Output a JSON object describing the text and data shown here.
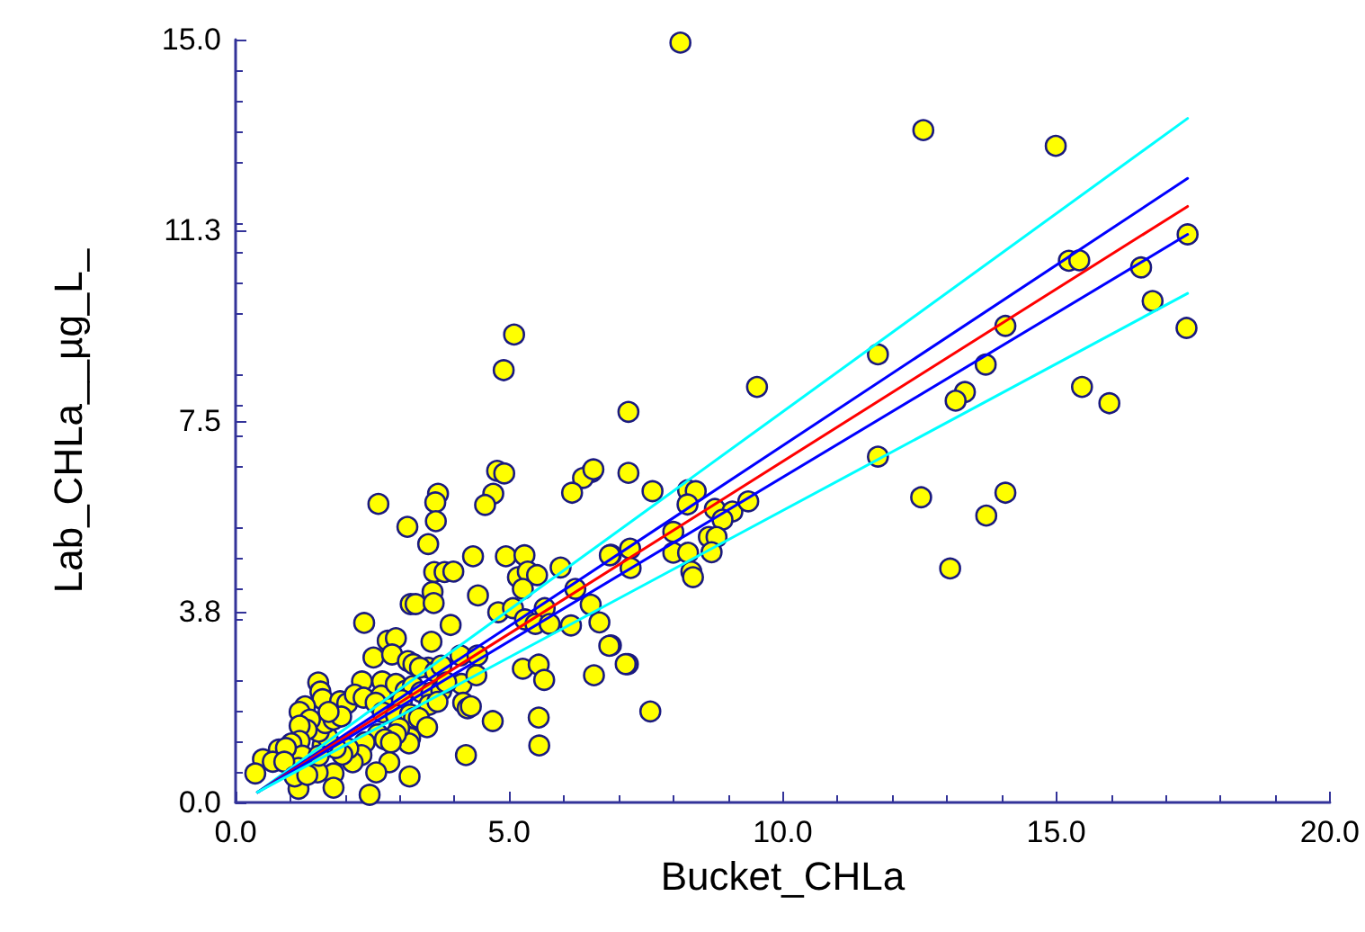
{
  "chart_data": {
    "type": "scatter",
    "xlabel": "Bucket_CHLa",
    "ylabel": "Lab_CHLa__µg_L_",
    "xlim": [
      0,
      20
    ],
    "xticks": [
      {
        "value": 0,
        "label": "0.0"
      },
      {
        "value": 5,
        "label": "5.0"
      },
      {
        "value": 10,
        "label": "10.0"
      },
      {
        "value": 15,
        "label": "15.0"
      },
      {
        "value": 20,
        "label": "20.0"
      }
    ],
    "ylim": [
      0,
      15
    ],
    "yticks": [
      {
        "value": 0,
        "label": "0.0"
      },
      {
        "value": 3.75,
        "label": "3.8"
      },
      {
        "value": 7.5,
        "label": "7.5"
      },
      {
        "value": 11.25,
        "label": "11.3"
      },
      {
        "value": 15,
        "label": "15.0"
      }
    ],
    "grid": false,
    "marker": "circle",
    "series": [
      {
        "color": "#ffff00",
        "x": [
          8.13,
          12.57,
          14.99,
          15.23,
          15.42,
          16.55,
          17.4,
          16.76,
          17.38,
          15.97,
          15.47,
          14.07,
          13.71,
          13.33,
          13.16,
          11.74,
          11.74,
          12.53,
          14.07,
          13.72,
          13.06,
          9.53,
          7.18,
          7.62,
          8.27,
          8.41,
          8.26,
          8.76,
          9.08,
          8.9,
          9.37,
          8.0,
          8.65,
          8.79,
          8.0,
          8.27,
          8.7,
          8.33,
          8.36,
          7.21,
          7.22,
          6.86,
          6.86,
          7.17,
          7.58,
          5.09,
          4.9,
          4.78,
          4.91,
          6.51,
          6.35,
          6.15,
          7.18,
          3.7,
          3.65,
          4.71,
          4.56,
          2.61,
          3.66,
          3.14,
          3.52,
          4.34,
          4.94,
          5.28,
          3.63,
          3.82,
          3.98,
          5.16,
          5.34,
          5.51,
          5.25,
          5.94,
          6.21,
          6.84,
          3.6,
          4.43,
          3.2,
          3.29,
          3.62,
          4.8,
          5.07,
          5.65,
          6.49,
          5.29,
          5.48,
          5.74,
          6.13,
          6.65,
          6.83,
          7.13,
          3.93,
          2.35,
          3.58,
          2.78,
          2.93,
          2.52,
          2.86,
          3.15,
          3.25,
          3.52,
          3.37,
          3.65,
          3.76,
          4.11,
          4.42,
          4.13,
          4.4,
          5.25,
          5.54,
          5.64,
          6.55,
          2.31,
          2.68,
          1.51,
          1.55,
          1.59,
          1.27,
          1.17,
          1.91,
          2.04,
          2.18,
          2.34,
          2.66,
          2.93,
          2.56,
          3.11,
          3.24,
          3.39,
          3.58,
          3.76,
          3.85,
          2.82,
          3.04,
          2.69,
          2.93,
          3.19,
          3.26,
          3.54,
          3.69,
          4.16,
          4.24,
          4.3,
          4.7,
          5.54,
          5.55,
          4.21,
          3.35,
          3.5,
          3.19,
          3.17,
          2.99,
          2.93,
          2.6,
          2.73,
          2.84,
          2.81,
          2.57,
          3.18,
          2.45,
          2.36,
          2.3,
          2.14,
          2.06,
          1.95,
          1.79,
          1.79,
          1.83,
          1.59,
          1.68,
          1.52,
          1.64,
          1.79,
          1.93,
          1.7,
          1.36,
          1.3,
          1.17,
          1.17,
          1.02,
          1.22,
          1.15,
          1.5,
          1.15,
          0.79,
          0.92,
          0.5,
          0.68,
          0.36,
          0.89,
          1.08,
          1.52,
          1.31,
          6.54
        ],
        "values": [
          14.94,
          13.22,
          12.91,
          10.65,
          10.66,
          10.52,
          11.17,
          9.86,
          9.33,
          7.85,
          8.17,
          9.37,
          8.61,
          8.07,
          7.9,
          8.81,
          6.8,
          6.0,
          6.09,
          5.64,
          4.6,
          8.17,
          7.68,
          6.12,
          6.14,
          6.12,
          5.86,
          5.77,
          5.72,
          5.56,
          5.92,
          5.32,
          5.22,
          5.22,
          4.91,
          4.91,
          4.92,
          4.54,
          4.43,
          4.99,
          4.61,
          4.87,
          3.09,
          2.72,
          1.79,
          9.2,
          8.5,
          6.52,
          6.47,
          6.5,
          6.38,
          6.09,
          6.48,
          6.07,
          5.9,
          6.07,
          5.85,
          5.87,
          5.53,
          5.42,
          5.08,
          4.84,
          4.84,
          4.86,
          4.53,
          4.53,
          4.54,
          4.43,
          4.54,
          4.47,
          4.2,
          4.62,
          4.2,
          4.86,
          4.14,
          4.07,
          3.9,
          3.9,
          3.92,
          3.74,
          3.82,
          3.82,
          3.89,
          3.6,
          3.51,
          3.51,
          3.48,
          3.54,
          3.08,
          2.72,
          3.49,
          3.53,
          3.16,
          3.18,
          3.23,
          2.85,
          2.91,
          2.78,
          2.72,
          2.65,
          2.65,
          2.57,
          2.69,
          2.89,
          2.89,
          2.33,
          2.5,
          2.63,
          2.71,
          2.41,
          2.5,
          2.38,
          2.38,
          2.36,
          2.18,
          2.03,
          1.89,
          1.78,
          1.99,
          1.95,
          2.12,
          2.06,
          2.1,
          2.33,
          1.96,
          2.2,
          2.29,
          2.17,
          2.16,
          2.2,
          2.36,
          1.85,
          2.01,
          1.77,
          1.72,
          1.73,
          1.66,
          1.92,
          1.98,
          1.96,
          1.85,
          1.89,
          1.6,
          1.67,
          1.12,
          0.93,
          1.66,
          1.48,
          1.27,
          1.16,
          1.46,
          1.34,
          1.34,
          1.24,
          1.18,
          0.79,
          0.59,
          0.51,
          0.15,
          1.18,
          0.93,
          0.79,
          1.06,
          0.94,
          0.57,
          0.29,
          1.07,
          1.12,
          1.28,
          1.39,
          1.56,
          1.63,
          1.69,
          1.78,
          1.63,
          1.43,
          1.51,
          1.21,
          1.16,
          0.92,
          0.68,
          0.59,
          0.27,
          1.04,
          1.07,
          0.85,
          0.8,
          0.57,
          0.8,
          0.51,
          0.92,
          0.54,
          6.55
        ]
      },
      {
        "type": "line",
        "color": "#00ffff",
        "marker": "none",
        "x": [
          0.4,
          17.4
        ],
        "values": [
          0.2,
          13.45
        ]
      },
      {
        "type": "line",
        "color": "#0000ff",
        "marker": "none",
        "x": [
          0.4,
          17.4
        ],
        "values": [
          0.2,
          12.27
        ]
      },
      {
        "type": "line",
        "color": "#ff0000",
        "marker": "none",
        "x": [
          0.4,
          17.4
        ],
        "values": [
          0.2,
          11.72
        ]
      },
      {
        "type": "line",
        "color": "#0000ff",
        "marker": "none",
        "x": [
          0.4,
          17.4
        ],
        "values": [
          0.2,
          11.17
        ]
      },
      {
        "type": "line",
        "color": "#00ffff",
        "marker": "none",
        "x": [
          0.4,
          17.4
        ],
        "values": [
          0.2,
          10.01
        ]
      }
    ]
  }
}
